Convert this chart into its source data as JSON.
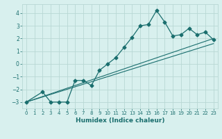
{
  "title": "",
  "xlabel": "Humidex (Indice chaleur)",
  "xlim": [
    -0.5,
    23.5
  ],
  "ylim": [
    -3.5,
    4.7
  ],
  "x_ticks": [
    0,
    1,
    2,
    3,
    4,
    5,
    6,
    7,
    8,
    9,
    10,
    11,
    12,
    13,
    14,
    15,
    16,
    17,
    18,
    19,
    20,
    21,
    22,
    23
  ],
  "y_ticks": [
    -3,
    -2,
    -1,
    0,
    1,
    2,
    3,
    4
  ],
  "data_x": [
    0,
    2,
    3,
    4,
    5,
    6,
    7,
    8,
    9,
    10,
    11,
    12,
    13,
    14,
    15,
    16,
    17,
    18,
    19,
    20,
    21,
    22,
    23
  ],
  "data_y": [
    -3.0,
    -2.2,
    -3.0,
    -3.0,
    -3.0,
    -1.3,
    -1.3,
    -1.7,
    -0.5,
    0.0,
    0.5,
    1.3,
    2.1,
    3.0,
    3.1,
    4.2,
    3.3,
    2.2,
    2.3,
    2.8,
    2.3,
    2.5,
    1.9
  ],
  "line_color": "#1a6e6e",
  "bg_color": "#d8f0ee",
  "grid_color": "#b8d8d4",
  "font_color": "#1a6e6e",
  "reg_line1": [
    0,
    -3.0,
    23,
    2.0
  ],
  "reg_line2": [
    0,
    -3.0,
    23,
    1.6
  ]
}
